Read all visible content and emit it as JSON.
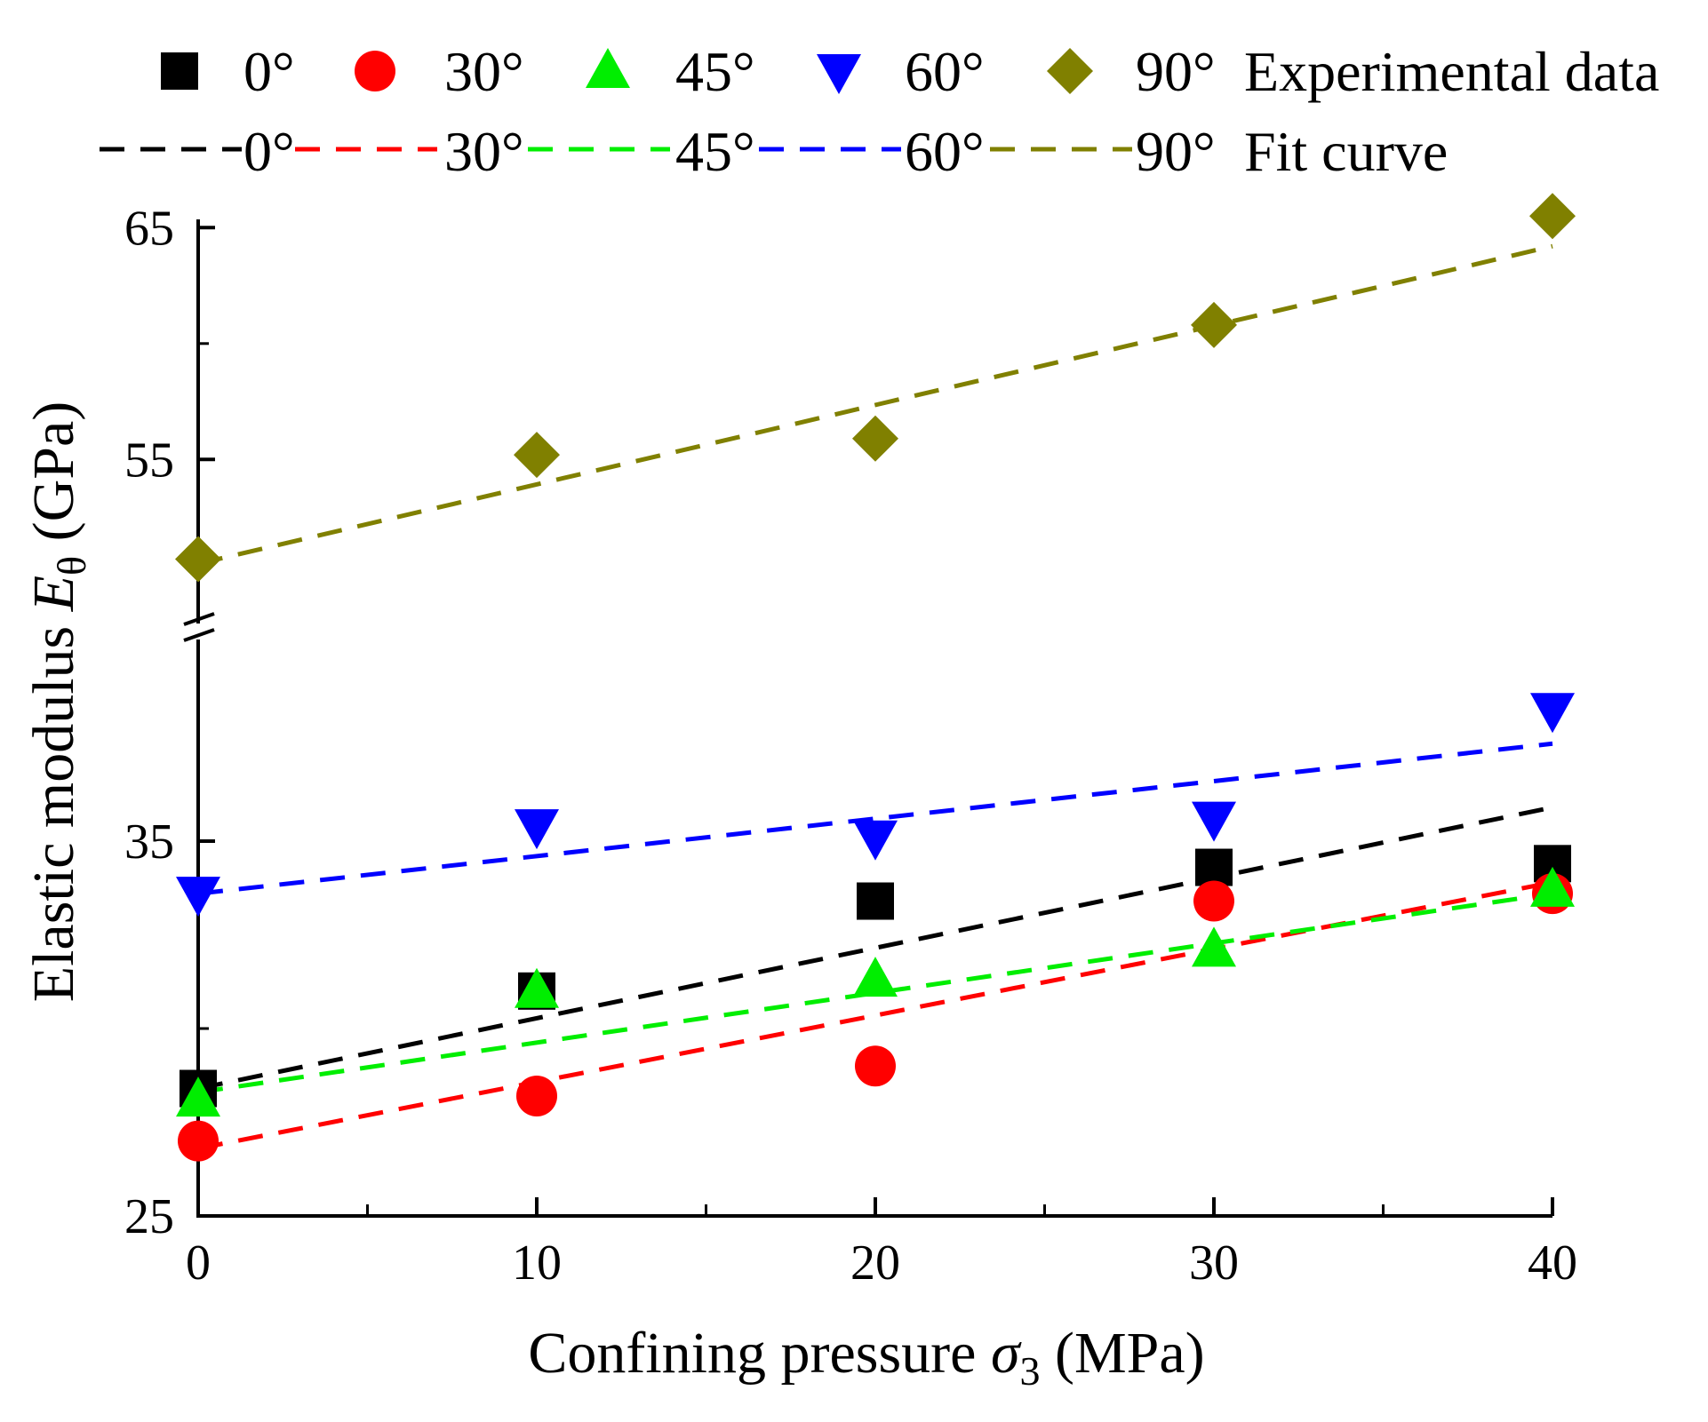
{
  "chart_data": {
    "type": "scatter",
    "xlabel": "Confining pressure",
    "xlabel_symbol": "σ",
    "xlabel_subscript": "3",
    "xlabel_unit": "(MPa)",
    "ylabel": "Elastic modulus",
    "ylabel_symbol": "E",
    "ylabel_subscript": "θ",
    "ylabel_unit": "(GPa)",
    "xlim": [
      0,
      40
    ],
    "x_ticks": [
      0,
      10,
      20,
      30,
      40
    ],
    "y_ticks": [
      25,
      35,
      55,
      65
    ],
    "y_axis_break": {
      "lower_segment": [
        25,
        40
      ],
      "upper_segment": [
        48,
        65
      ]
    },
    "legend_experimental_label": "Experimental data",
    "legend_fit_label": "Fit curve",
    "x": [
      0,
      10,
      20,
      30,
      40
    ],
    "series": [
      {
        "name": "0°",
        "color": "#000000",
        "marker": "square",
        "values": [
          28.4,
          31.0,
          33.4,
          34.3,
          34.4
        ],
        "fit": [
          28.4,
          35.9
        ]
      },
      {
        "name": "30°",
        "color": "#ff0000",
        "marker": "circle",
        "values": [
          27.0,
          28.2,
          29.0,
          33.4,
          33.6
        ],
        "fit": [
          26.8,
          33.9
        ]
      },
      {
        "name": "45°",
        "color": "#00ee00",
        "marker": "triangle-up",
        "values": [
          28.1,
          31.0,
          31.3,
          32.1,
          33.7
        ],
        "fit": [
          28.3,
          33.6
        ]
      },
      {
        "name": "60°",
        "color": "#0000ff",
        "marker": "triangle-down",
        "values": [
          33.6,
          35.4,
          35.1,
          35.6,
          38.5
        ],
        "fit": [
          33.6,
          37.6
        ]
      },
      {
        "name": "90°",
        "color": "#808000",
        "marker": "diamond",
        "values": [
          50.7,
          55.2,
          55.9,
          60.8,
          65.5
        ],
        "fit": [
          50.5,
          64.2
        ]
      }
    ]
  }
}
